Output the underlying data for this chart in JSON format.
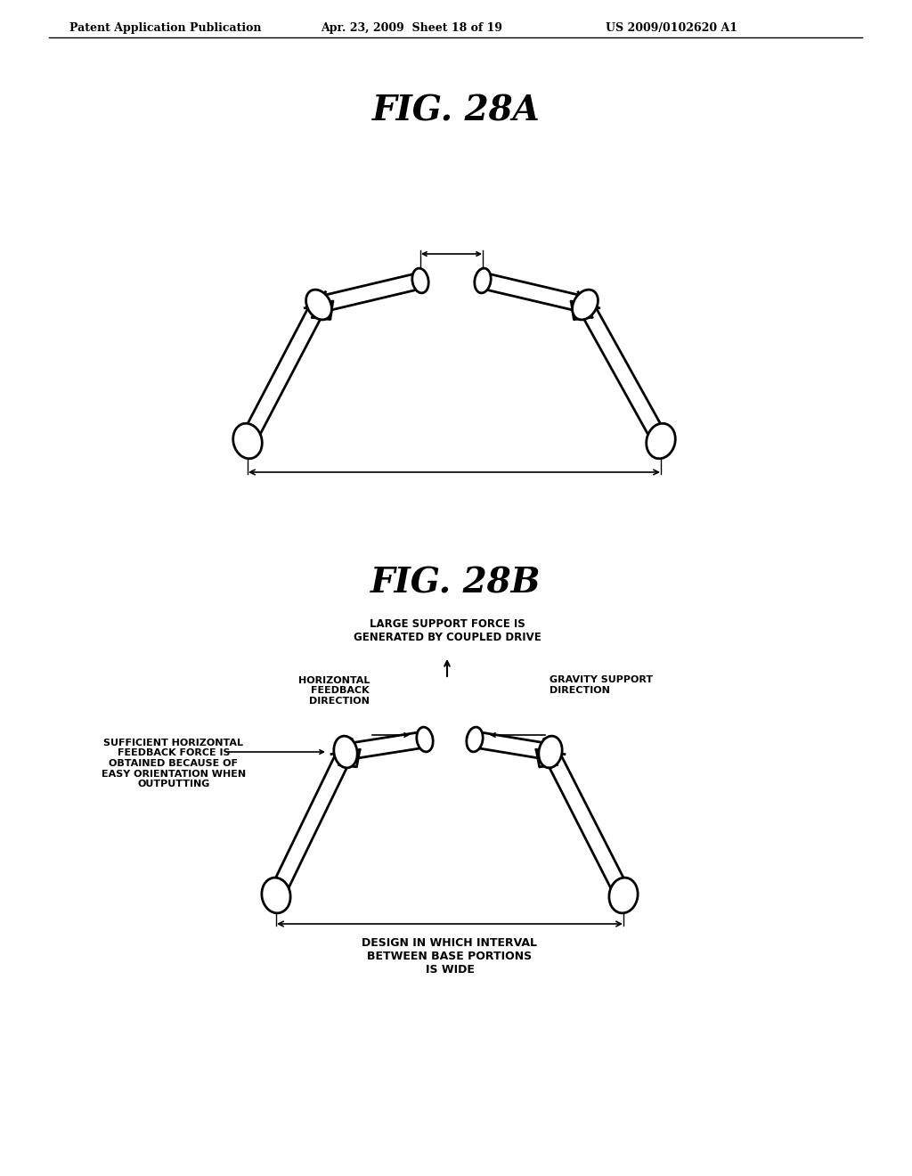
{
  "bg_color": "#ffffff",
  "line_color": "#000000",
  "header_left": "Patent Application Publication",
  "header_mid": "Apr. 23, 2009  Sheet 18 of 19",
  "header_right": "US 2009/0102620 A1",
  "fig28a_title": "FIG. 28A",
  "fig28b_title": "FIG. 28B",
  "annotation_top": "LARGE SUPPORT FORCE IS\nGENERATED BY COUPLED DRIVE",
  "annotation_left": "SUFFICIENT HORIZONTAL\nFEEDBACK FORCE IS\nOBTAINED BECAUSE OF\nEASY ORIENTATION WHEN\nOUTPUTTING",
  "annotation_gravity": "GRAVITY SUPPORT\nDIRECTION",
  "annotation_horiz": "HORIZONTAL\nFEEDBACK\nDIRECTION",
  "annotation_bottom": "DESIGN IN WHICH INTERVAL\nBETWEEN BASE PORTIONS\nIS WIDE"
}
